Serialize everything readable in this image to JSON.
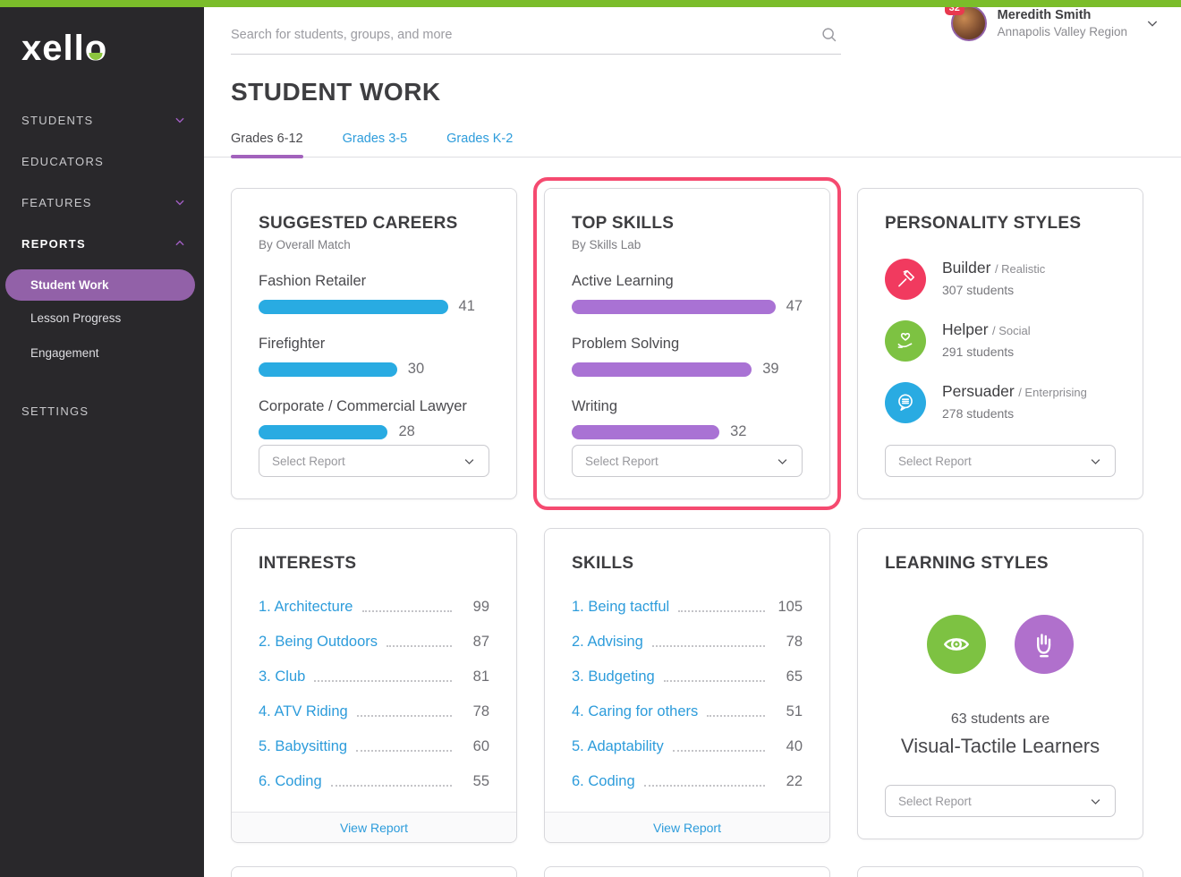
{
  "brand": {
    "logo_text": "xello"
  },
  "topbar": {
    "search_placeholder": "Search for students, groups, and more",
    "notification_count": "32",
    "user_name": "Meredith Smith",
    "user_region": "Annapolis Valley Region"
  },
  "sidebar": {
    "students": "STUDENTS",
    "educators": "EDUCATORS",
    "features": "FEATURES",
    "reports": "REPORTS",
    "report_items": [
      {
        "label": "Student Work",
        "active": true
      },
      {
        "label": "Lesson Progress"
      },
      {
        "label": "Engagement"
      }
    ],
    "settings": "SETTINGS"
  },
  "page": {
    "title": "STUDENT WORK",
    "tabs": [
      {
        "label": "Grades 6-12",
        "active": true
      },
      {
        "label": "Grades 3-5"
      },
      {
        "label": "Grades K-2"
      }
    ]
  },
  "cards": {
    "suggested_careers": {
      "title": "SUGGESTED CAREERS",
      "subtitle": "By Overall Match",
      "bar_color": "#29ABE2",
      "items": [
        {
          "label": "Fashion Retailer",
          "value": 41
        },
        {
          "label": "Firefighter",
          "value": 30
        },
        {
          "label": "Corporate / Commercial Lawyer",
          "value": 28
        }
      ],
      "select_label": "Select Report"
    },
    "top_skills": {
      "title": "TOP SKILLS",
      "subtitle": "By Skills Lab",
      "highlighted": true,
      "highlight_color": "#F54A70",
      "bar_color": "#A972D4",
      "items": [
        {
          "label": "Active Learning",
          "value": 47
        },
        {
          "label": "Problem Solving",
          "value": 39
        },
        {
          "label": "Writing",
          "value": 32
        }
      ],
      "select_label": "Select Report"
    },
    "personality_styles": {
      "title": "PERSONALITY STYLES",
      "items": [
        {
          "name": "Builder",
          "category": "/ Realistic",
          "students": "307 students",
          "color": "#F13A5F",
          "icon": "hammer-icon"
        },
        {
          "name": "Helper",
          "category": "/ Social",
          "students": "291 students",
          "color": "#7DC242",
          "icon": "heart-in-hand-icon"
        },
        {
          "name": "Persuader",
          "category": "/ Enterprising",
          "students": "278 students",
          "color": "#29ABE2",
          "icon": "speech-bubble-icon"
        }
      ],
      "select_label": "Select Report"
    },
    "interests": {
      "title": "INTERESTS",
      "items": [
        {
          "rank": "1.",
          "label": "Architecture",
          "value": 99
        },
        {
          "rank": "2.",
          "label": "Being Outdoors",
          "value": 87
        },
        {
          "rank": "3.",
          "label": "Club",
          "value": 81
        },
        {
          "rank": "4.",
          "label": "ATV Riding",
          "value": 78
        },
        {
          "rank": "5.",
          "label": "Babysitting",
          "value": 60
        },
        {
          "rank": "6.",
          "label": "Coding",
          "value": 55
        }
      ],
      "footer_link": "View Report"
    },
    "skills": {
      "title": "SKILLS",
      "items": [
        {
          "rank": "1.",
          "label": "Being tactful",
          "value": 105
        },
        {
          "rank": "2.",
          "label": "Advising",
          "value": 78
        },
        {
          "rank": "3.",
          "label": "Budgeting",
          "value": 65
        },
        {
          "rank": "4.",
          "label": "Caring for others",
          "value": 51
        },
        {
          "rank": "5.",
          "label": "Adaptability",
          "value": 40
        },
        {
          "rank": "6.",
          "label": "Coding",
          "value": 22
        }
      ],
      "footer_link": "View Report"
    },
    "learning_styles": {
      "title": "LEARNING STYLES",
      "icons": [
        {
          "name": "eye-icon",
          "color": "#7DC242"
        },
        {
          "name": "hand-icon",
          "color": "#B070CC"
        }
      ],
      "line1": "63 students are",
      "line2": "Visual-Tactile Learners",
      "select_label": "Select Report"
    }
  }
}
